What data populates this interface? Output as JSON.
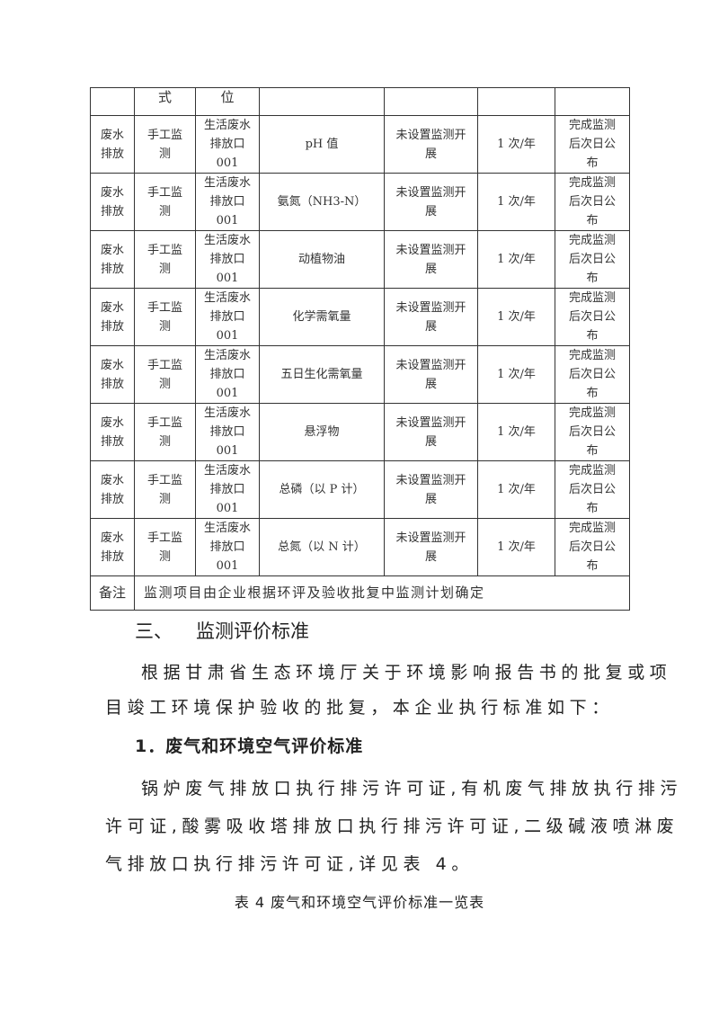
{
  "table": {
    "header_cont": [
      "",
      "式",
      "位",
      "",
      "",
      "",
      ""
    ],
    "rows": [
      {
        "type": "废水\n排放",
        "method": "手工监\n测",
        "point": "生活废水\n排放口\n001",
        "item": "pH 值",
        "facility": "未设置监测开\n展",
        "freq": "1 次/年",
        "publish": "完成监测\n后次日公\n布"
      },
      {
        "type": "废水\n排放",
        "method": "手工监\n测",
        "point": "生活废水\n排放口\n001",
        "item": "氨氮（NH3-N）",
        "facility": "未设置监测开\n展",
        "freq": "1 次/年",
        "publish": "完成监测\n后次日公\n布"
      },
      {
        "type": "废水\n排放",
        "method": "手工监\n测",
        "point": "生活废水\n排放口\n001",
        "item": "动植物油",
        "facility": "未设置监测开\n展",
        "freq": "1 次/年",
        "publish": "完成监测\n后次日公\n布"
      },
      {
        "type": "废水\n排放",
        "method": "手工监\n测",
        "point": "生活废水\n排放口\n001",
        "item": "化学需氧量",
        "facility": "未设置监测开\n展",
        "freq": "1 次/年",
        "publish": "完成监测\n后次日公\n布"
      },
      {
        "type": "废水\n排放",
        "method": "手工监\n测",
        "point": "生活废水\n排放口\n001",
        "item": "五日生化需氧量",
        "facility": "未设置监测开\n展",
        "freq": "1 次/年",
        "publish": "完成监测\n后次日公\n布"
      },
      {
        "type": "废水\n排放",
        "method": "手工监\n测",
        "point": "生活废水\n排放口\n001",
        "item": "悬浮物",
        "facility": "未设置监测开\n展",
        "freq": "1 次/年",
        "publish": "完成监测\n后次日公\n布"
      },
      {
        "type": "废水\n排放",
        "method": "手工监\n测",
        "point": "生活废水\n排放口\n001",
        "item": "总磷（以 P 计）",
        "facility": "未设置监测开\n展",
        "freq": "1 次/年",
        "publish": "完成监测\n后次日公\n布"
      },
      {
        "type": "废水\n排放",
        "method": "手工监\n测",
        "point": "生活废水\n排放口\n001",
        "item": "总氮（以 N 计）",
        "facility": "未设置监测开\n展",
        "freq": "1 次/年",
        "publish": "完成监测\n后次日公\n布"
      }
    ],
    "note_label": "备注",
    "note_text": "监测项目由企业根据环评及验收批复中监测计划确定"
  },
  "section": {
    "number": "三、",
    "title": "监测评价标准"
  },
  "paragraph1": [
    "根据甘肃省生态环境厅关于环境影响报告书的批复或项",
    "目竣工环境保护验收的批复，本企业执行标准如下："
  ],
  "subsection": "1．废气和环境空气评价标准",
  "paragraph2": [
    "锅炉废气排放口执行排污许可证,有机废气排放执行排污",
    "许可证,酸雾吸收塔排放口执行排污许可证,二级碱液喷淋废",
    "气排放口执行排污许可证,详见表 4。"
  ],
  "caption": "表 4 废气和环境空气评价标准一览表"
}
